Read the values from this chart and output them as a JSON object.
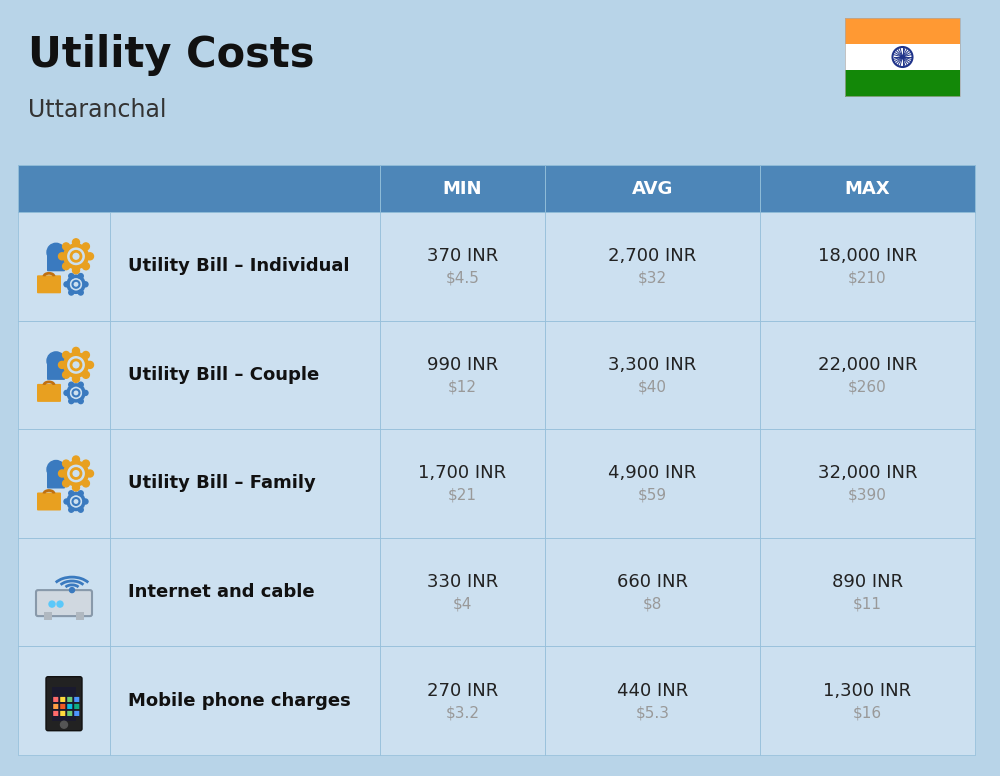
{
  "title": "Utility Costs",
  "subtitle": "Uttaranchal",
  "bg_color": "#b8d4e8",
  "header_bg": "#4d86b8",
  "header_text_color": "#ffffff",
  "cell_bg": "#cce0f0",
  "header_labels": [
    "MIN",
    "AVG",
    "MAX"
  ],
  "rows": [
    {
      "label": "Utility Bill – Individual",
      "min_inr": "370 INR",
      "min_usd": "$4.5",
      "avg_inr": "2,700 INR",
      "avg_usd": "$32",
      "max_inr": "18,000 INR",
      "max_usd": "$210",
      "icon": "utility"
    },
    {
      "label": "Utility Bill – Couple",
      "min_inr": "990 INR",
      "min_usd": "$12",
      "avg_inr": "3,300 INR",
      "avg_usd": "$40",
      "max_inr": "22,000 INR",
      "max_usd": "$260",
      "icon": "utility"
    },
    {
      "label": "Utility Bill – Family",
      "min_inr": "1,700 INR",
      "min_usd": "$21",
      "avg_inr": "4,900 INR",
      "avg_usd": "$59",
      "max_inr": "32,000 INR",
      "max_usd": "$390",
      "icon": "utility"
    },
    {
      "label": "Internet and cable",
      "min_inr": "330 INR",
      "min_usd": "$4",
      "avg_inr": "660 INR",
      "avg_usd": "$8",
      "max_inr": "890 INR",
      "max_usd": "$11",
      "icon": "internet"
    },
    {
      "label": "Mobile phone charges",
      "min_inr": "270 INR",
      "min_usd": "$3.2",
      "avg_inr": "440 INR",
      "avg_usd": "$5.3",
      "max_inr": "1,300 INR",
      "max_usd": "$16",
      "icon": "mobile"
    }
  ],
  "title_fontsize": 30,
  "subtitle_fontsize": 17,
  "header_fontsize": 13,
  "label_fontsize": 13,
  "value_fontsize": 13,
  "usd_fontsize": 11,
  "usd_color": "#999999",
  "divider_color": "#90bcd8",
  "flag_orange": "#FF9933",
  "flag_white": "#FFFFFF",
  "flag_green": "#138808",
  "ashoka_color": "#20348a"
}
